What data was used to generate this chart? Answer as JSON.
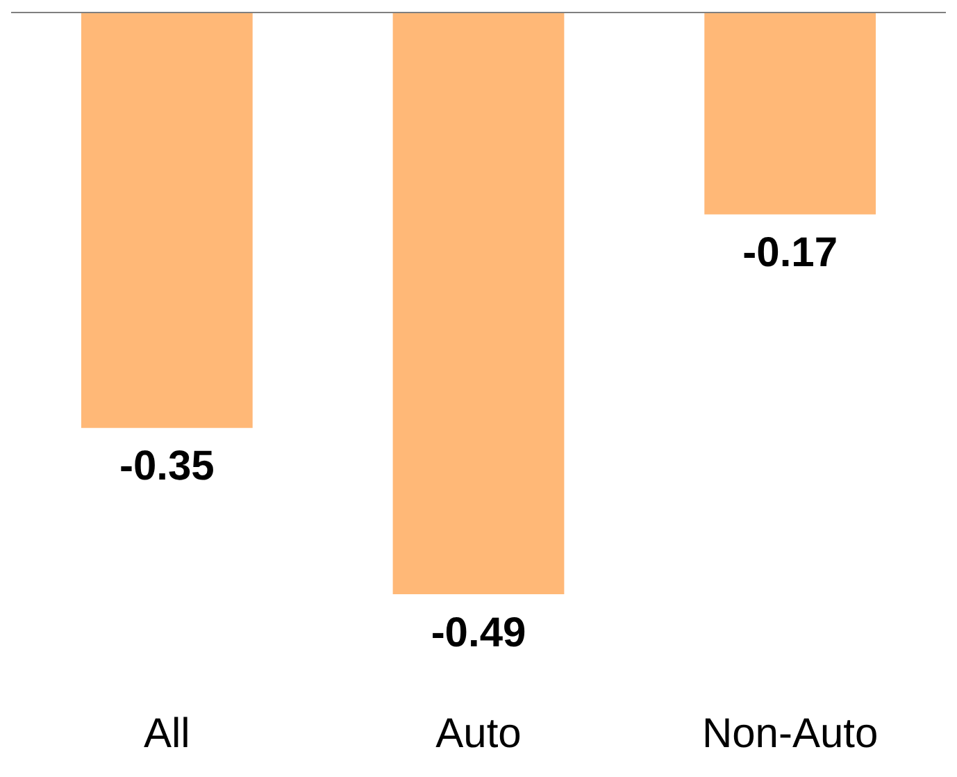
{
  "chart_data": {
    "type": "bar",
    "categories": [
      "All",
      "Auto",
      "Non-Auto"
    ],
    "values": [
      -0.35,
      -0.49,
      -0.17
    ],
    "color": "#ffb877",
    "data_labels": true,
    "grid": false,
    "legend": false
  }
}
